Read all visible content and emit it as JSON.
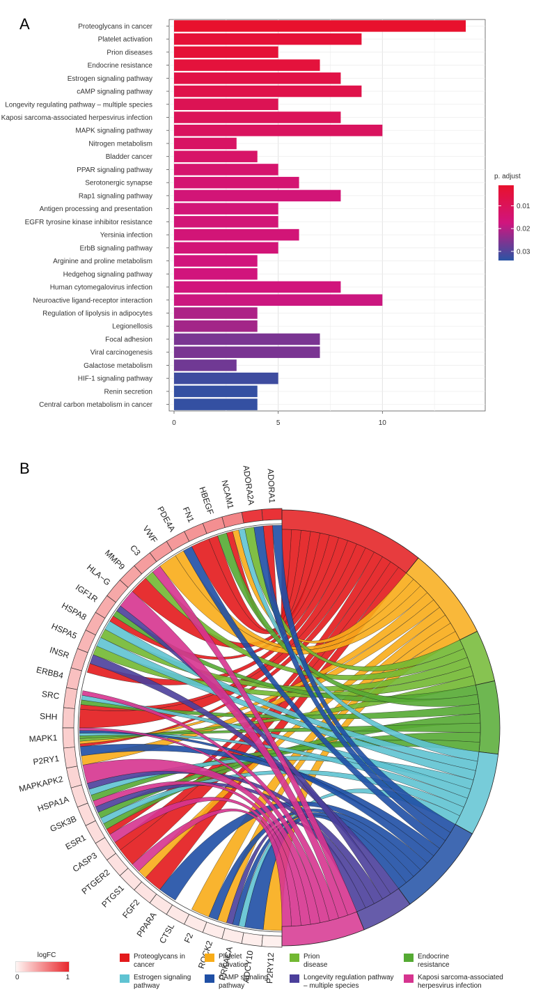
{
  "panel_a": {
    "label": "A"
  },
  "panel_b": {
    "label": "B"
  },
  "chart_data": [
    {
      "type": "bar",
      "orientation": "horizontal",
      "categories": [
        "Proteoglycans in cancer",
        "Platelet activation",
        "Prion diseases",
        "Endocrine resistance",
        "Estrogen signaling pathway",
        "cAMP signaling pathway",
        "Longevity regulating pathway – multiple species",
        "Kaposi sarcoma-associated herpesvirus infection",
        "MAPK signaling pathway",
        "Nitrogen metabolism",
        "Bladder cancer",
        "PPAR signaling pathway",
        "Serotonergic synapse",
        "Rap1 signaling pathway",
        "Antigen processing and presentation",
        "EGFR tyrosine kinase inhibitor resistance",
        "Yersinia infection",
        "ErbB signaling pathway",
        "Arginine and proline metabolism",
        "Hedgehog signaling pathway",
        "Human cytomegalovirus infection",
        "Neuroactive ligand-receptor interaction",
        "Regulation of lipolysis in adipocytes",
        "Legionellosis",
        "Focal adhesion",
        "Viral carcinogenesis",
        "Galactose metabolism",
        "HIF-1 signaling pathway",
        "Renin secretion",
        "Central carbon metabolism in cancer"
      ],
      "values": [
        14,
        9,
        5,
        7,
        8,
        9,
        5,
        8,
        10,
        3,
        4,
        5,
        6,
        8,
        5,
        5,
        6,
        5,
        4,
        4,
        8,
        10,
        4,
        4,
        7,
        7,
        3,
        5,
        4,
        4
      ],
      "p_adjust": [
        0.001,
        0.003,
        0.003,
        0.004,
        0.006,
        0.007,
        0.009,
        0.01,
        0.011,
        0.012,
        0.013,
        0.014,
        0.015,
        0.016,
        0.016,
        0.016,
        0.016,
        0.016,
        0.017,
        0.017,
        0.017,
        0.018,
        0.021,
        0.022,
        0.026,
        0.026,
        0.027,
        0.032,
        0.033,
        0.033
      ],
      "xlim": [
        0,
        14.7
      ],
      "xticks": [
        0,
        5,
        10
      ],
      "grid": true,
      "legend": {
        "title": "p. adjust",
        "ticks": [
          0.01,
          0.02,
          0.03
        ],
        "range": [
          0.001,
          0.034
        ],
        "colors": [
          "#e8112d",
          "#d0157e",
          "#2a54a4"
        ]
      }
    },
    {
      "type": "chord",
      "genes": [
        "ADORA1",
        "ADORA2A",
        "NCAM1",
        "HBEGF",
        "FN1",
        "PDE4A",
        "VWF",
        "C3",
        "MMP9",
        "HLA−G",
        "IGF1R",
        "HSPA8",
        "HSPA5",
        "INSR",
        "ERBB4",
        "SRC",
        "SHH",
        "MAPK1",
        "P2RY1",
        "MAPKAPK2",
        "HSPA1A",
        "GSK3B",
        "ESR1",
        "CASP3",
        "PTGER2",
        "PTGS1",
        "FGF2",
        "PPARA",
        "CTSL",
        "F2",
        "ROCK2",
        "PRKACA",
        "ADCY10",
        "P2RY12"
      ],
      "logFC": [
        0.95,
        0.92,
        0.55,
        0.5,
        0.47,
        0.45,
        0.44,
        0.43,
        0.4,
        0.38,
        0.36,
        0.34,
        0.31,
        0.29,
        0.26,
        0.24,
        0.21,
        0.19,
        0.17,
        0.16,
        0.14,
        0.13,
        0.12,
        0.11,
        0.1,
        0.09,
        0.09,
        0.08,
        0.07,
        0.06,
        0.05,
        0.05,
        0.04,
        0.03
      ],
      "pathways": [
        {
          "name": "Proteoglycans in\ncancer",
          "color": "#e31a1c",
          "genes": [
            "ADORA1",
            "NCAM1",
            "HBEGF",
            "FN1",
            "MMP9",
            "IGF1R",
            "INSR",
            "SRC",
            "SHH",
            "MAPK1",
            "ESR1",
            "CASP3",
            "PTGER2",
            "FGF2"
          ]
        },
        {
          "name": "Platelet\nactivation",
          "color": "#f8ac18",
          "genes": [
            "NCAM1",
            "PDE4A",
            "VWF",
            "MAPK1",
            "P2RY1",
            "PTGS1",
            "F2",
            "ROCK2",
            "P2RY12"
          ]
        },
        {
          "name": "Prion\ndisease",
          "color": "#72b832",
          "genes": [
            "ADORA2A",
            "C3",
            "HSPA8",
            "HSPA5",
            "MAPK1"
          ]
        },
        {
          "name": "Endocrine\nresistance",
          "color": "#55aa33",
          "genes": [
            "IGF1R",
            "HBEGF",
            "SRC",
            "ESR1",
            "MAPK1",
            "GSK3B",
            "HSPA1A"
          ]
        },
        {
          "name": "Estrogen signaling\npathway",
          "color": "#5fc3d2",
          "genes": [
            "NCAM1",
            "HSPA8",
            "HSPA5",
            "HSPA1A",
            "SRC",
            "MAPK1",
            "ESR1",
            "PRKACA"
          ]
        },
        {
          "name": "CAMP signaling\npathway",
          "color": "#1f4fa5",
          "genes": [
            "ADORA1",
            "ADORA2A",
            "PDE4A",
            "P2RY1",
            "MAPK1",
            "PPARA",
            "ROCK2",
            "PRKACA",
            "ADCY10"
          ]
        },
        {
          "name": "Longevity regulation pathway\n– multiple species",
          "color": "#4b3f9b",
          "genes": [
            "INSR",
            "IGF1R",
            "HSPA1A",
            "GSK3B",
            "PRKACA"
          ]
        },
        {
          "name": "Kaposi sarcoma-associated\nherpesvirus infection",
          "color": "#d6348f",
          "genes": [
            "C3",
            "HLA−G",
            "SRC",
            "MAPK1",
            "MAPKAPK2",
            "GSK3B",
            "CASP3",
            "PTGS1"
          ]
        }
      ],
      "logfc_legend": {
        "title": "logFC",
        "ticks": [
          "0",
          "1"
        ]
      }
    }
  ]
}
